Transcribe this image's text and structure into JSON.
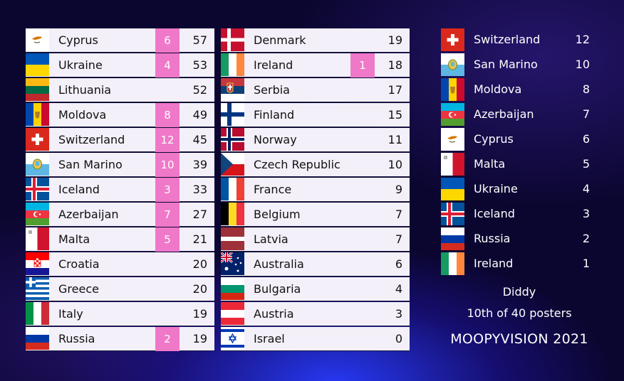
{
  "columns": [
    [
      {
        "country": "Cyprus",
        "flag": "cyprus-flag-icon",
        "points": "6",
        "total": "57"
      },
      {
        "country": "Ukraine",
        "flag": "ukraine-flag-icon",
        "points": "4",
        "total": "53"
      },
      {
        "country": "Lithuania",
        "flag": "lithuania-flag-icon",
        "points": "",
        "total": "52"
      },
      {
        "country": "Moldova",
        "flag": "moldova-flag-icon",
        "points": "8",
        "total": "49"
      },
      {
        "country": "Switzerland",
        "flag": "switzerland-flag-icon",
        "points": "12",
        "total": "45"
      },
      {
        "country": "San Marino",
        "flag": "san-marino-flag-icon",
        "points": "10",
        "total": "39"
      },
      {
        "country": "Iceland",
        "flag": "iceland-flag-icon",
        "points": "3",
        "total": "33"
      },
      {
        "country": "Azerbaijan",
        "flag": "azerbaijan-flag-icon",
        "points": "7",
        "total": "27"
      },
      {
        "country": "Malta",
        "flag": "malta-flag-icon",
        "points": "5",
        "total": "21"
      },
      {
        "country": "Croatia",
        "flag": "croatia-flag-icon",
        "points": "",
        "total": "20"
      },
      {
        "country": "Greece",
        "flag": "greece-flag-icon",
        "points": "",
        "total": "20"
      },
      {
        "country": "Italy",
        "flag": "italy-flag-icon",
        "points": "",
        "total": "19"
      },
      {
        "country": "Russia",
        "flag": "russia-flag-icon",
        "points": "2",
        "total": "19"
      }
    ],
    [
      {
        "country": "Denmark",
        "flag": "denmark-flag-icon",
        "points": "",
        "total": "19"
      },
      {
        "country": "Ireland",
        "flag": "ireland-flag-icon",
        "points": "1",
        "total": "18"
      },
      {
        "country": "Serbia",
        "flag": "serbia-flag-icon",
        "points": "",
        "total": "17"
      },
      {
        "country": "Finland",
        "flag": "finland-flag-icon",
        "points": "",
        "total": "15"
      },
      {
        "country": "Norway",
        "flag": "norway-flag-icon",
        "points": "",
        "total": "11"
      },
      {
        "country": "Czech Republic",
        "flag": "czech-flag-icon",
        "points": "",
        "total": "10"
      },
      {
        "country": "France",
        "flag": "france-flag-icon",
        "points": "",
        "total": "9"
      },
      {
        "country": "Belgium",
        "flag": "belgium-flag-icon",
        "points": "",
        "total": "7"
      },
      {
        "country": "Latvia",
        "flag": "latvia-flag-icon",
        "points": "",
        "total": "7"
      },
      {
        "country": "Australia",
        "flag": "australia-flag-icon",
        "points": "",
        "total": "6"
      },
      {
        "country": "Bulgaria",
        "flag": "bulgaria-flag-icon",
        "points": "",
        "total": "4"
      },
      {
        "country": "Austria",
        "flag": "austria-flag-icon",
        "points": "",
        "total": "3"
      },
      {
        "country": "Israel",
        "flag": "israel-flag-icon",
        "points": "",
        "total": "0"
      }
    ]
  ],
  "votes": [
    {
      "country": "Switzerland",
      "flag": "switzerland-flag-icon",
      "points": "12"
    },
    {
      "country": "San Marino",
      "flag": "san-marino-flag-icon",
      "points": "10"
    },
    {
      "country": "Moldova",
      "flag": "moldova-flag-icon",
      "points": "8"
    },
    {
      "country": "Azerbaijan",
      "flag": "azerbaijan-flag-icon",
      "points": "7"
    },
    {
      "country": "Cyprus",
      "flag": "cyprus-flag-icon",
      "points": "6"
    },
    {
      "country": "Malta",
      "flag": "malta-flag-icon",
      "points": "5"
    },
    {
      "country": "Ukraine",
      "flag": "ukraine-flag-icon",
      "points": "4"
    },
    {
      "country": "Iceland",
      "flag": "iceland-flag-icon",
      "points": "3"
    },
    {
      "country": "Russia",
      "flag": "russia-flag-icon",
      "points": "2"
    },
    {
      "country": "Ireland",
      "flag": "ireland-flag-icon",
      "points": "1"
    }
  ],
  "voter": "Diddy",
  "rank_text": "10th of 40 posters",
  "event_title": "MOOPYVISION 2021",
  "colors": {
    "points_badge": "#ef78c8",
    "row_bg": "#f3f0f9",
    "text_light": "#ffffff"
  }
}
